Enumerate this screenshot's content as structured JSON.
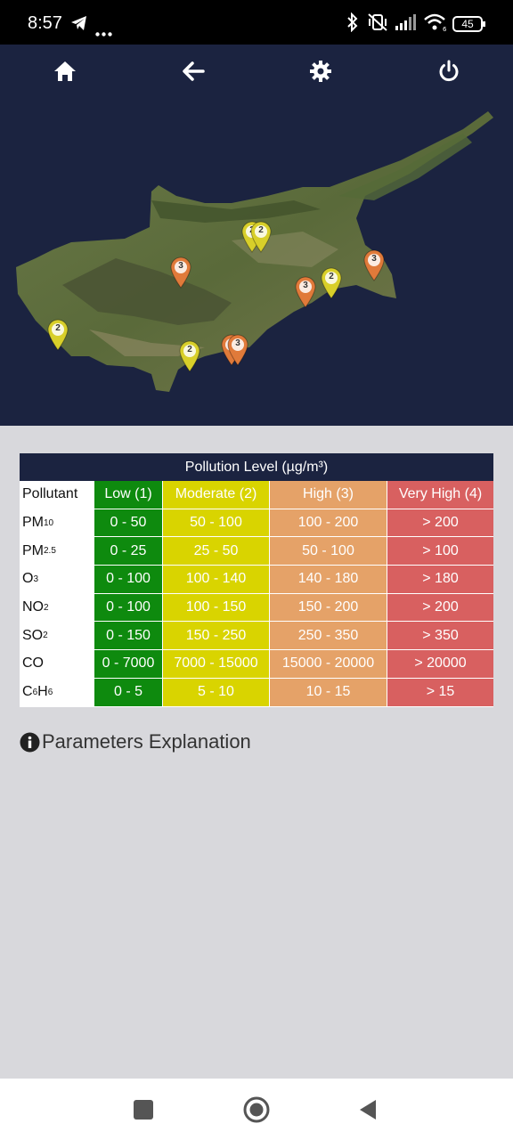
{
  "status_bar": {
    "time": "8:57",
    "battery": "45",
    "icons": [
      "telegram-icon",
      "more-dots-icon",
      "bluetooth-icon",
      "vibrate-off-icon",
      "signal-icon",
      "wifi-icon",
      "battery-icon"
    ]
  },
  "toolbar": {
    "icons": [
      "home-icon",
      "back-arrow-icon",
      "settings-icon",
      "power-icon"
    ]
  },
  "map": {
    "markers": [
      {
        "level": "2",
        "color": "#d8cf2a"
      },
      {
        "level": "2",
        "color": "#d8cf2a"
      },
      {
        "level": "3",
        "color": "#e07a3a"
      },
      {
        "level": "3",
        "color": "#e07a3a"
      },
      {
        "level": "2",
        "color": "#d8cf2a"
      },
      {
        "level": "3",
        "color": "#e07a3a"
      },
      {
        "level": "2",
        "color": "#d8cf2a"
      },
      {
        "level": "2",
        "color": "#d8cf2a"
      },
      {
        "level": "3",
        "color": "#e07a3a"
      },
      {
        "level": "3",
        "color": "#e07a3a"
      }
    ]
  },
  "legend": {
    "title": "Pollution Level (µg/m³)",
    "headers": [
      "Pollutant",
      "Low (1)",
      "Moderate (2)",
      "High (3)",
      "Very High (4)"
    ],
    "rows": [
      {
        "pollutant_main": "PM",
        "pollutant_sub": "10",
        "values": [
          "0 - 50",
          "50 - 100",
          "100 - 200",
          "> 200"
        ]
      },
      {
        "pollutant_main": "PM",
        "pollutant_sub": "2.5",
        "values": [
          "0 - 25",
          "25 - 50",
          "50 - 100",
          "> 100"
        ]
      },
      {
        "pollutant_main": "O",
        "pollutant_sub": "3",
        "values": [
          "0 - 100",
          "100 - 140",
          "140 - 180",
          "> 180"
        ]
      },
      {
        "pollutant_main": "NO",
        "pollutant_sub": "2",
        "values": [
          "0 - 100",
          "100 - 150",
          "150 - 200",
          "> 200"
        ]
      },
      {
        "pollutant_main": "SO",
        "pollutant_sub": "2",
        "values": [
          "0 - 150",
          "150 - 250",
          "250 - 350",
          "> 350"
        ]
      },
      {
        "pollutant_main": "CO",
        "pollutant_sub": "",
        "values": [
          "0 - 7000",
          "7000 - 15000",
          "15000 - 20000",
          "> 20000"
        ]
      },
      {
        "pollutant_main": "C",
        "pollutant_sub": "6",
        "pollutant_main2": "H",
        "pollutant_sub2": "6",
        "values": [
          "0 - 5",
          "5 - 10",
          "10 - 15",
          "> 15"
        ]
      }
    ],
    "colors": {
      "low": "#0e8a0e",
      "moderate": "#d9d400",
      "high": "#e5a268",
      "very_high": "#d86060",
      "title_bg": "#1b2340"
    }
  },
  "explanation": {
    "label": "Parameters Explanation",
    "icon": "info-icon"
  },
  "nav": {
    "icons": [
      "recents-square-icon",
      "home-circle-icon",
      "back-triangle-icon"
    ]
  }
}
